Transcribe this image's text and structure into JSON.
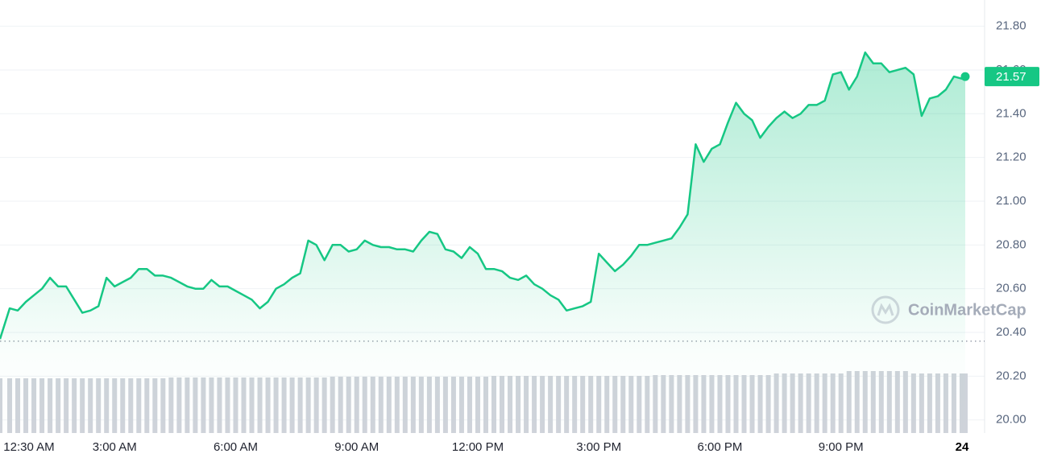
{
  "chart_data": {
    "type": "area",
    "color": "#16c784",
    "x": [
      0.16,
      0.4,
      0.6,
      0.8,
      1,
      1.2,
      1.4,
      1.6,
      1.8,
      2,
      2.2,
      2.4,
      2.6,
      2.8,
      3,
      3.2,
      3.4,
      3.6,
      3.8,
      4,
      4.2,
      4.4,
      4.6,
      4.8,
      5,
      5.2,
      5.4,
      5.6,
      5.8,
      6,
      6.2,
      6.4,
      6.6,
      6.8,
      7,
      7.2,
      7.4,
      7.6,
      7.8,
      8,
      8.2,
      8.4,
      8.6,
      8.8,
      9,
      9.2,
      9.4,
      9.6,
      9.8,
      10,
      10.2,
      10.4,
      10.6,
      10.8,
      11,
      11.2,
      11.4,
      11.6,
      11.8,
      12,
      12.2,
      12.4,
      12.6,
      12.8,
      13,
      13.2,
      13.4,
      13.6,
      13.8,
      14,
      14.2,
      14.4,
      14.6,
      14.8,
      15,
      15.2,
      15.4,
      15.6,
      15.8,
      16,
      16.2,
      16.4,
      16.6,
      16.8,
      17,
      17.2,
      17.4,
      17.6,
      17.8,
      18,
      18.2,
      18.4,
      18.6,
      18.8,
      19,
      19.2,
      19.4,
      19.6,
      19.8,
      20,
      20.2,
      20.4,
      20.6,
      20.8,
      21,
      21.2,
      21.4,
      21.6,
      21.8,
      22,
      22.2,
      22.4,
      22.6,
      22.8,
      23,
      23.2,
      23.4,
      23.6,
      23.8,
      24,
      24.08
    ],
    "values": [
      20.37,
      20.51,
      20.5,
      20.54,
      20.57,
      20.6,
      20.65,
      20.61,
      20.61,
      20.55,
      20.49,
      20.5,
      20.52,
      20.65,
      20.61,
      20.63,
      20.65,
      20.69,
      20.69,
      20.66,
      20.66,
      20.65,
      20.63,
      20.61,
      20.6,
      20.6,
      20.64,
      20.61,
      20.61,
      20.59,
      20.57,
      20.55,
      20.51,
      20.54,
      20.6,
      20.62,
      20.65,
      20.67,
      20.82,
      20.8,
      20.73,
      20.8,
      20.8,
      20.77,
      20.78,
      20.82,
      20.8,
      20.79,
      20.79,
      20.78,
      20.78,
      20.77,
      20.82,
      20.86,
      20.85,
      20.78,
      20.77,
      20.74,
      20.79,
      20.76,
      20.69,
      20.69,
      20.68,
      20.65,
      20.64,
      20.66,
      20.62,
      20.6,
      20.57,
      20.55,
      20.5,
      20.51,
      20.52,
      20.54,
      20.76,
      20.72,
      20.68,
      20.71,
      20.75,
      20.8,
      20.8,
      20.81,
      20.82,
      20.83,
      20.88,
      20.94,
      21.26,
      21.18,
      21.24,
      21.26,
      21.36,
      21.45,
      21.4,
      21.37,
      21.29,
      21.34,
      21.38,
      21.41,
      21.38,
      21.4,
      21.44,
      21.44,
      21.46,
      21.58,
      21.59,
      21.51,
      21.57,
      21.68,
      21.63,
      21.63,
      21.59,
      21.6,
      21.61,
      21.58,
      21.39,
      21.47,
      21.48,
      21.51,
      21.57,
      21.56,
      21.57
    ],
    "volume": {
      "color": "#cfd3da",
      "lim": [
        0,
        100
      ],
      "values": [
        68,
        68,
        68,
        68,
        68,
        68,
        68,
        68,
        68,
        68,
        68,
        68,
        68,
        68,
        68,
        68,
        68,
        68,
        68,
        68,
        68,
        69,
        69,
        69,
        69,
        69,
        69,
        69,
        69,
        69,
        69,
        69,
        69,
        69,
        69,
        69,
        69,
        69,
        69,
        69,
        69,
        70,
        70,
        70,
        70,
        70,
        70,
        70,
        70,
        70,
        70,
        70,
        70,
        70,
        70,
        70,
        70,
        70,
        70,
        70,
        70,
        71,
        71,
        71,
        71,
        71,
        71,
        71,
        71,
        71,
        71,
        71,
        71,
        71,
        71,
        71,
        71,
        71,
        71,
        71,
        71,
        72,
        72,
        72,
        72,
        72,
        72,
        72,
        72,
        72,
        72,
        72,
        72,
        72,
        72,
        72,
        74,
        74,
        74,
        74,
        74,
        74,
        74,
        74,
        74,
        77,
        77,
        77,
        77,
        77,
        77,
        77,
        77,
        74,
        74,
        74,
        74,
        74,
        74,
        74,
        74
      ]
    },
    "reference_line": 20.36,
    "xlim": [
      0.16,
      24.56
    ],
    "ylim": [
      19.94,
      21.92
    ],
    "yticks": [
      {
        "value": 20.0,
        "label": "20.00"
      },
      {
        "value": 20.2,
        "label": "20.20"
      },
      {
        "value": 20.4,
        "label": "20.40"
      },
      {
        "value": 20.6,
        "label": "20.60"
      },
      {
        "value": 20.8,
        "label": "20.80"
      },
      {
        "value": 21.0,
        "label": "21.00"
      },
      {
        "value": 21.2,
        "label": "21.20"
      },
      {
        "value": 21.4,
        "label": "21.40"
      },
      {
        "value": 21.6,
        "label": "21.60"
      },
      {
        "value": 21.8,
        "label": "21.80"
      }
    ],
    "xticks": [
      {
        "value": 0.5,
        "label": "12:30 AM"
      },
      {
        "value": 3,
        "label": "3:00 AM"
      },
      {
        "value": 6,
        "label": "6:00 AM"
      },
      {
        "value": 9,
        "label": "9:00 AM"
      },
      {
        "value": 12,
        "label": "12:00 PM"
      },
      {
        "value": 15,
        "label": "3:00 PM"
      },
      {
        "value": 18,
        "label": "6:00 PM"
      },
      {
        "value": 21,
        "label": "9:00 PM"
      },
      {
        "value": 24,
        "label": "24"
      }
    ],
    "grid": true,
    "watermark": "CoinMarketCap"
  }
}
